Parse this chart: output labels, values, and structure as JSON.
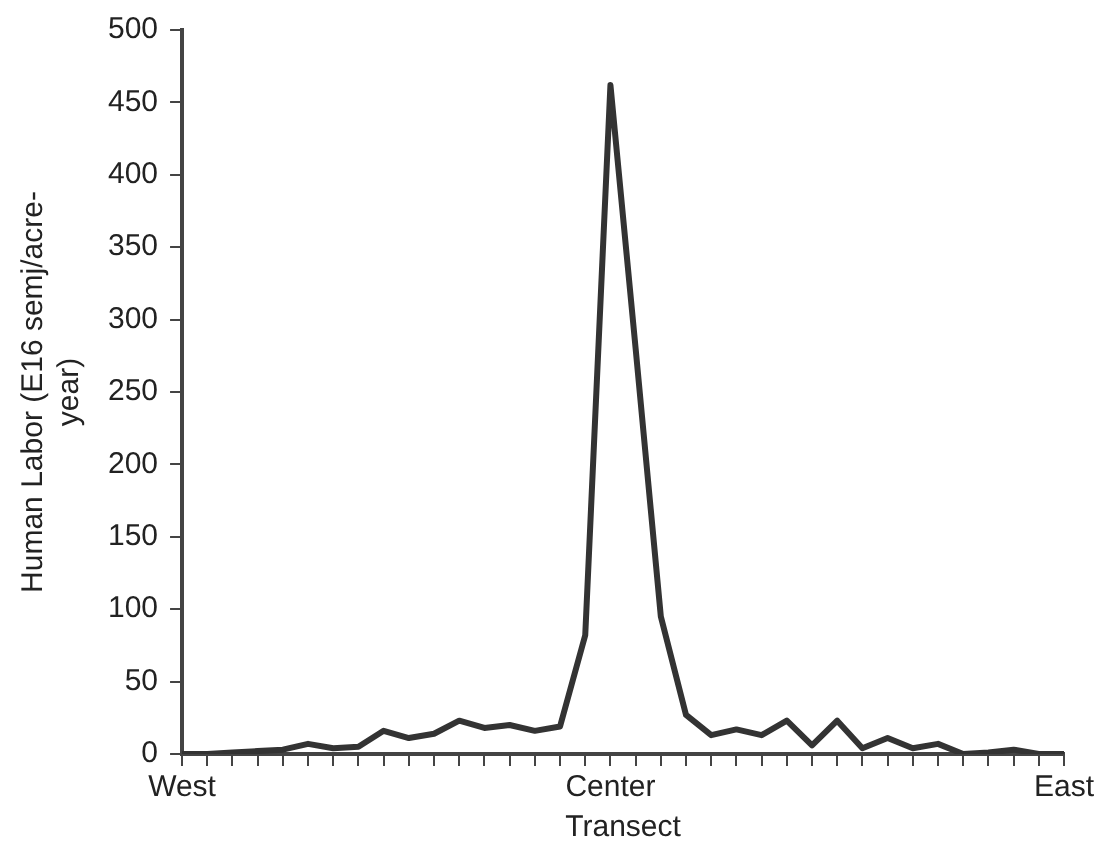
{
  "chart_data": {
    "type": "line",
    "xlabel": "Transect",
    "ylabel": "Human Labor (E16 semj/acre-year)",
    "categories": [
      "West",
      null,
      null,
      null,
      null,
      null,
      null,
      null,
      null,
      null,
      null,
      null,
      null,
      null,
      null,
      null,
      null,
      "Center",
      null,
      null,
      null,
      null,
      null,
      null,
      null,
      null,
      null,
      null,
      null,
      null,
      null,
      null,
      null,
      null,
      null,
      "East"
    ],
    "series": [
      {
        "color": "#333333",
        "values": [
          0,
          0,
          1,
          2,
          3,
          7,
          4,
          5,
          16,
          11,
          14,
          23,
          18,
          20,
          16,
          19,
          82,
          462,
          280,
          95,
          27,
          13,
          17,
          13,
          23,
          6,
          23,
          4,
          11,
          4,
          7,
          0,
          1,
          3,
          0,
          0
        ]
      }
    ],
    "ylim": [
      0,
      500
    ],
    "yticks": [
      0,
      50,
      100,
      150,
      200,
      250,
      300,
      350,
      400,
      450,
      500
    ],
    "grid": false,
    "legend": false,
    "marker": "none",
    "line_style": "solid"
  }
}
